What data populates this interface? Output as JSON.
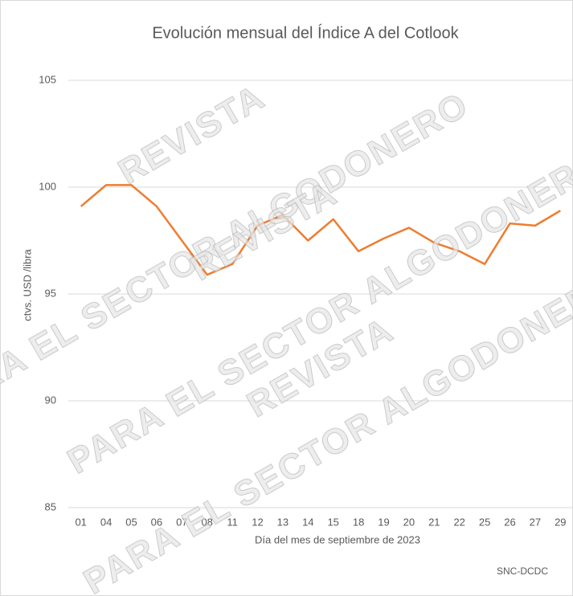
{
  "chart_data": {
    "type": "line",
    "title": "Evolución mensual  del Índice A del Cotlook",
    "x_label": "Día del mes de septiembre de 2023",
    "y_label": "ctvs. USD /libra",
    "source": "SNC-DCDC",
    "watermarks": [
      "REVISTA",
      "PARA EL SECTOR ALGODONERO",
      "REVISTA",
      "PARA EL SECTOR ALGODONERO",
      "REVISTA",
      "PARA EL SECTOR ALGODONERO"
    ],
    "categories": [
      "01",
      "04",
      "05",
      "06",
      "07",
      "08",
      "11",
      "12",
      "13",
      "14",
      "15",
      "18",
      "19",
      "20",
      "21",
      "22",
      "25",
      "26",
      "27",
      "29"
    ],
    "series": [
      {
        "name": "Índice A",
        "color": "#ed7d31",
        "values": [
          99.1,
          100.1,
          100.1,
          99.1,
          97.5,
          95.9,
          96.4,
          98.2,
          98.7,
          97.5,
          98.5,
          97.0,
          97.6,
          98.1,
          97.4,
          97.0,
          96.4,
          98.3,
          98.2,
          98.9
        ]
      }
    ],
    "ylim": [
      85,
      105
    ],
    "yticks": [
      85,
      90,
      95,
      100,
      105
    ],
    "grid": true
  }
}
